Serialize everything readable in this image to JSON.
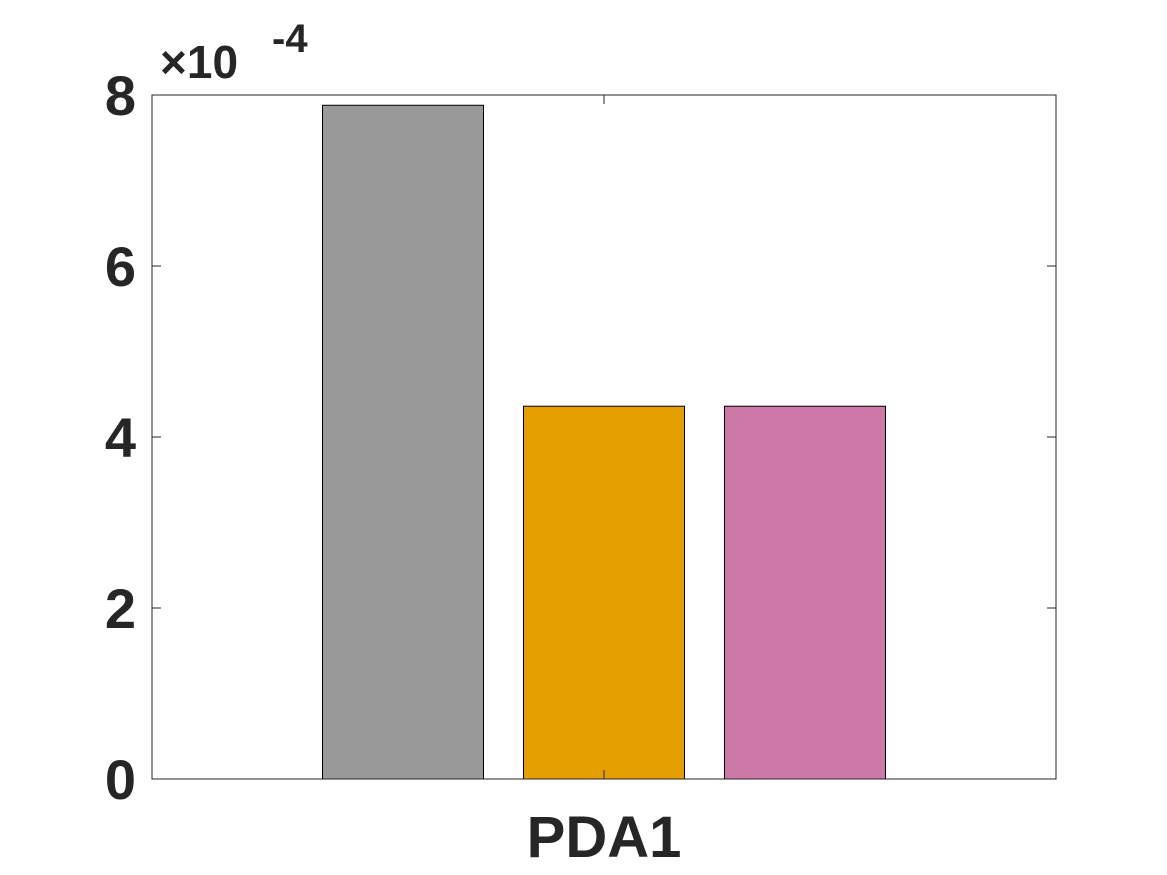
{
  "chart_data": {
    "type": "bar",
    "categories": [
      "PDA1"
    ],
    "series": [
      {
        "values": [
          0.000788
        ]
      },
      {
        "values": [
          0.000436
        ]
      },
      {
        "values": [
          0.000436
        ]
      }
    ],
    "series_colors": [
      "#999999",
      "#e69f00",
      "#cc79a7"
    ],
    "title": "",
    "xlabel": "",
    "ylabel": "",
    "ylim": [
      0,
      0.0008
    ],
    "yticks": [
      0,
      0.0002,
      0.0004,
      0.0006,
      0.0008
    ],
    "ytick_labels": [
      "0",
      "2",
      "4",
      "6",
      "8"
    ],
    "y_exponent_label": "×10",
    "y_exponent_power": "-4",
    "grid": false,
    "legend": "none"
  }
}
